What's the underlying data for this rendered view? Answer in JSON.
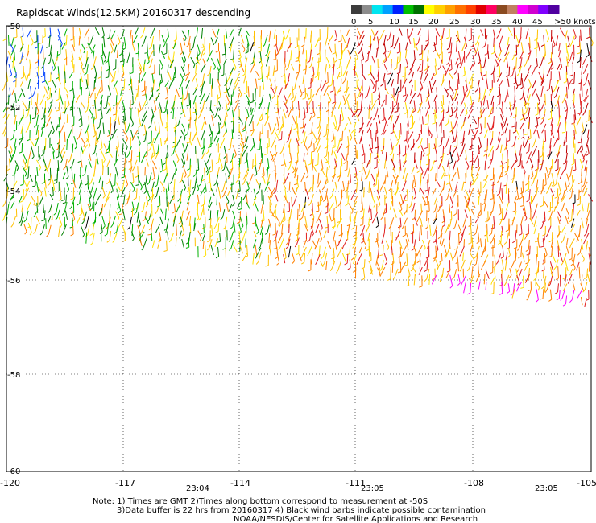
{
  "title": "Rapidscat Winds(12.5KM) 20160317 descending",
  "colorbar": {
    "labels": [
      "0",
      "5",
      "10",
      "15",
      "20",
      "25",
      "30",
      "35",
      "40",
      "45",
      ">50 knots"
    ],
    "colors": [
      "#3c3c3c",
      "#8c8c8c",
      "#00e5f0",
      "#00a0ff",
      "#0020ff",
      "#00c000",
      "#007000",
      "#ffff00",
      "#ffd000",
      "#ffa000",
      "#ff7000",
      "#ff4000",
      "#e00000",
      "#ff0060",
      "#8a4a20",
      "#c08060",
      "#ff00ff",
      "#d000d0",
      "#8000ff",
      "#5000a0"
    ]
  },
  "lat_labels": [
    "-50",
    "-52",
    "-54",
    "-56",
    "-58",
    "-60"
  ],
  "lon_labels": [
    "-120",
    "-117",
    "-114",
    "-111",
    "-108",
    "-105"
  ],
  "time_labels": [
    "23:04",
    "23:05",
    "23:05"
  ],
  "time_color": "#a000a0",
  "notes": [
    "Note: 1) Times are GMT 2)Times along bottom correspond to measurement at -50S",
    "3)Data buffer is 22 hrs from 20160317 4) Black wind barbs indicate possible contamination",
    "NOAA/NESDIS/Center for Satellite Applications and Research"
  ],
  "wind_field": {
    "speed_units": "knots",
    "regions": [
      {
        "area": "west",
        "dominant_speed_knots": "15-25",
        "dominant_colors": [
          "#00c000",
          "#ffd000"
        ]
      },
      {
        "area": "east",
        "dominant_speed_knots": "25-35",
        "dominant_colors": [
          "#ff7000",
          "#e00000"
        ]
      },
      {
        "area": "southern swath edge",
        "dominant_speed_knots": "40-45",
        "dominant_colors": [
          "#ff00ff"
        ]
      }
    ]
  }
}
